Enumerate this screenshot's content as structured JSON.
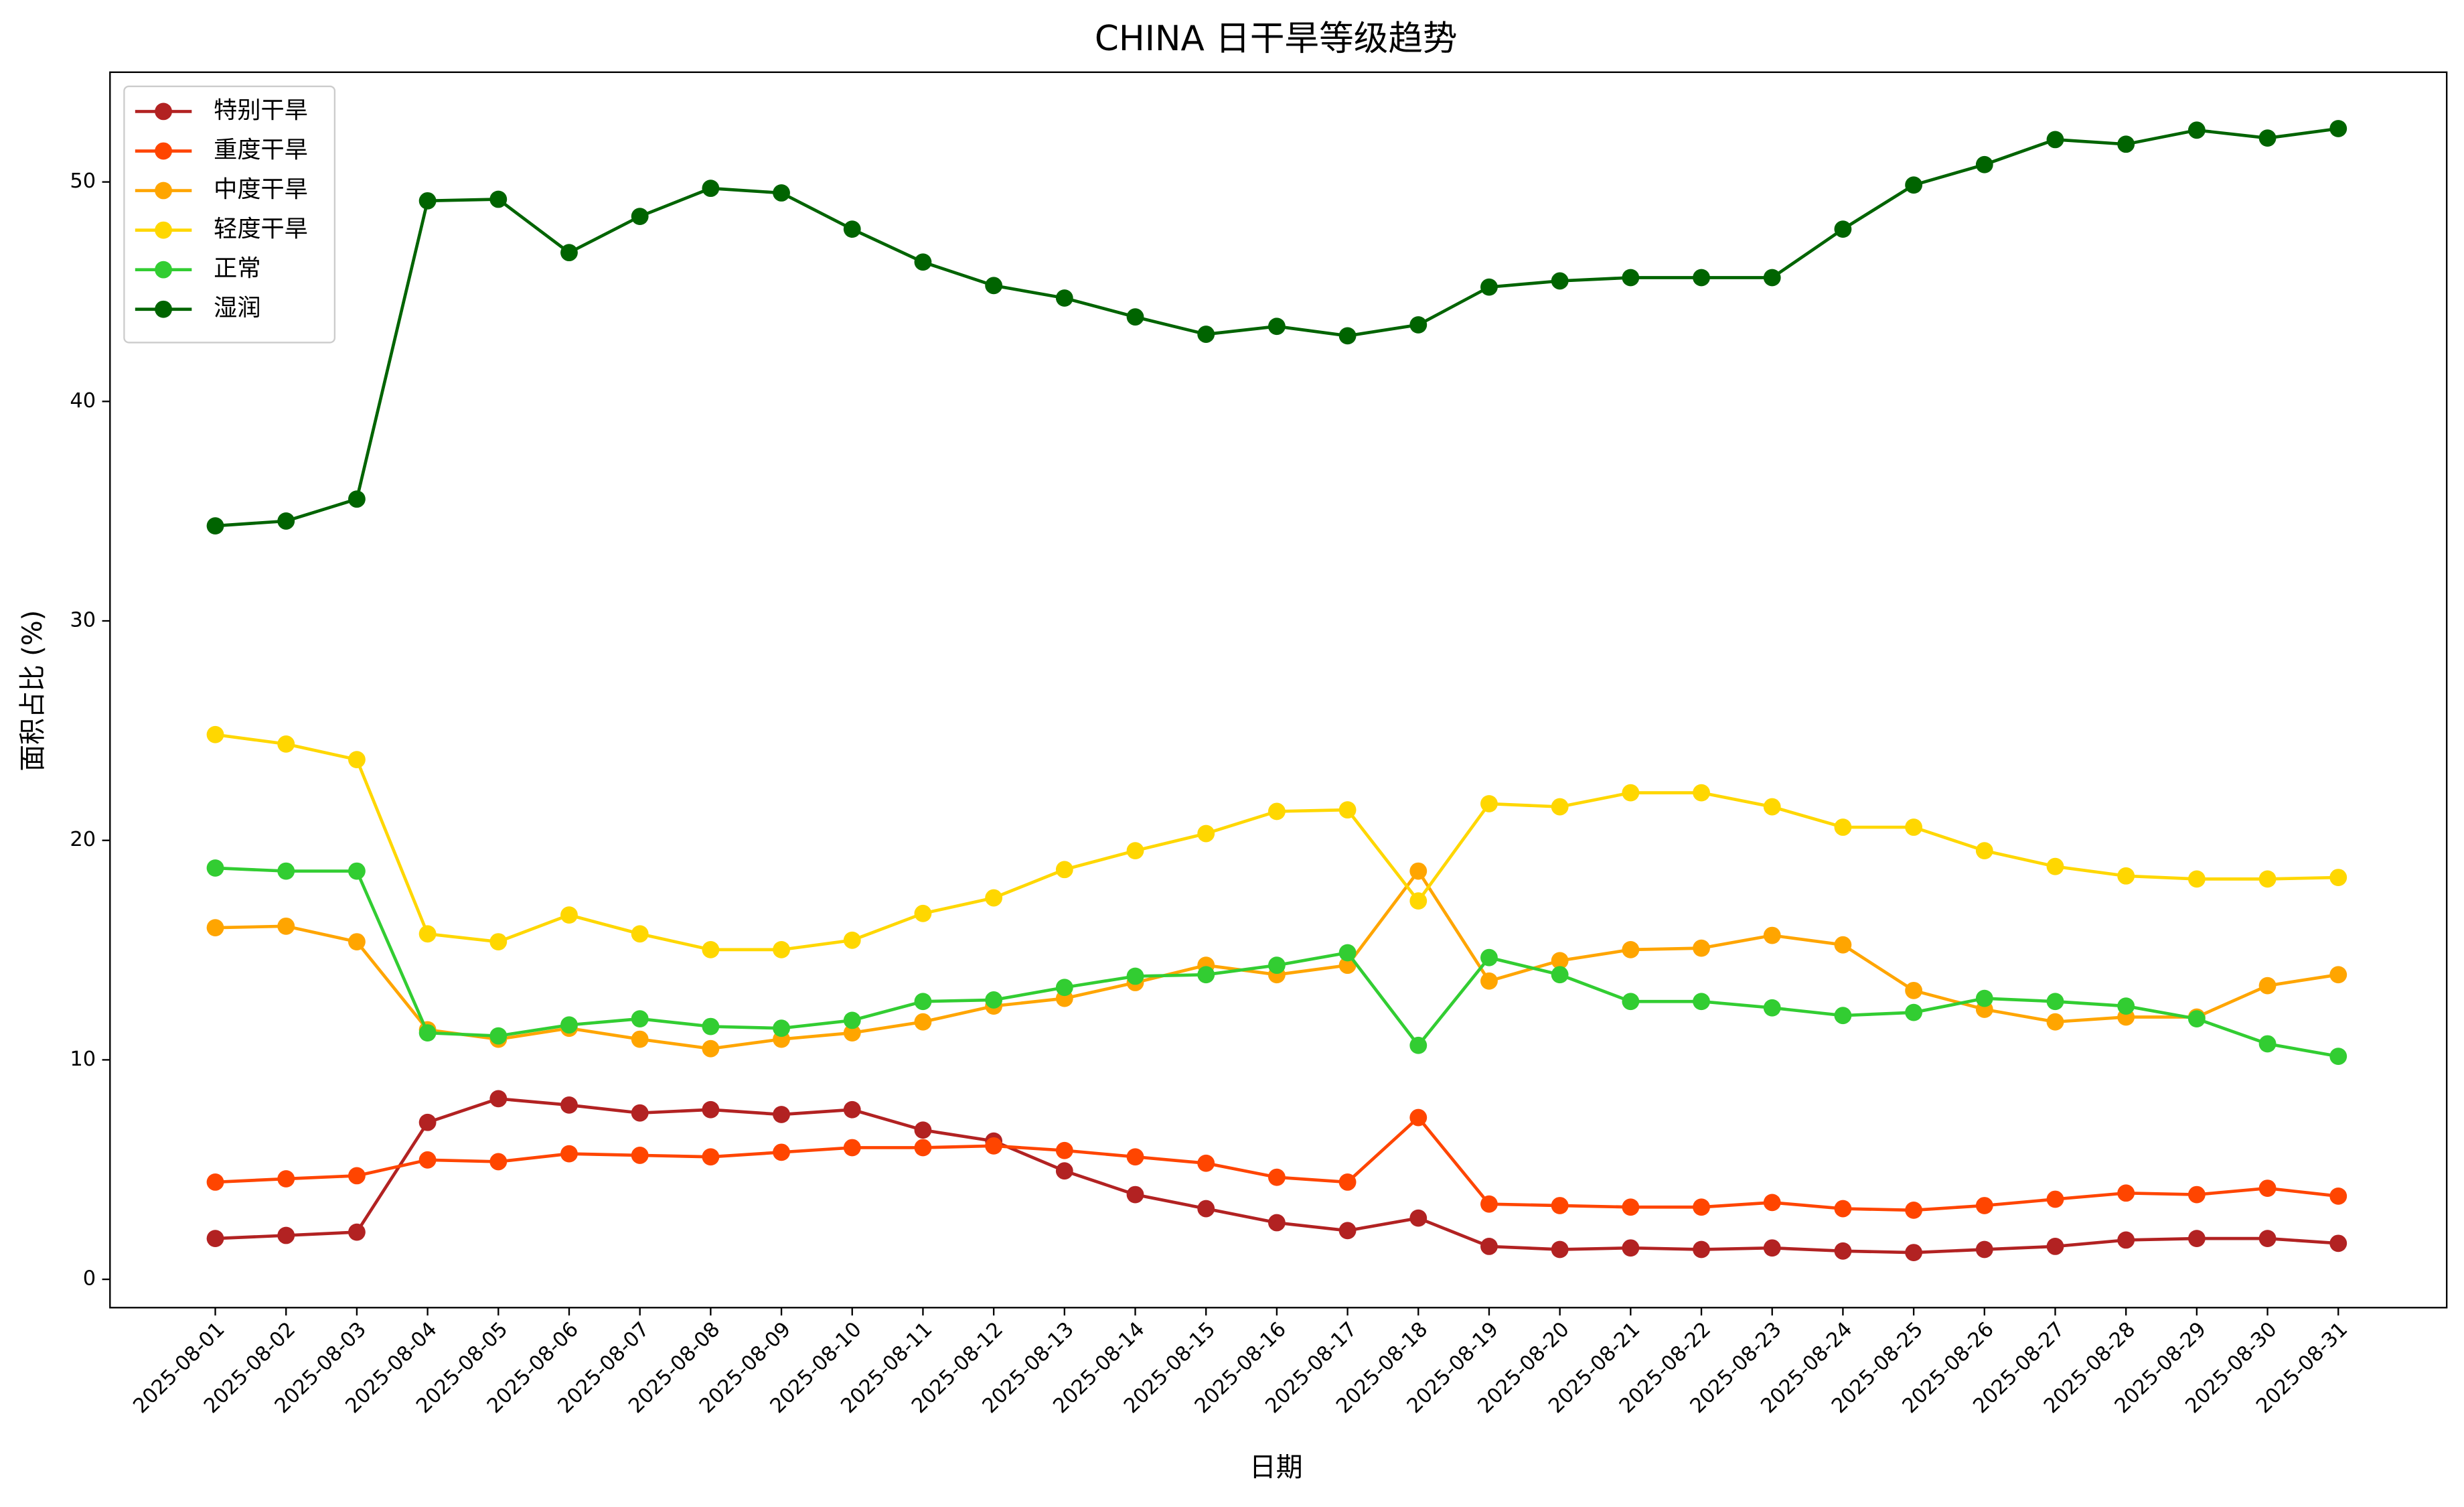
{
  "chart_data": {
    "type": "line",
    "title": "CHINA 日干旱等级趋势",
    "x_label": "日期",
    "y_label": "面积占比 (%)",
    "categories": [
      "2025-08-01",
      "2025-08-02",
      "2025-08-03",
      "2025-08-04",
      "2025-08-05",
      "2025-08-06",
      "2025-08-07",
      "2025-08-08",
      "2025-08-09",
      "2025-08-10",
      "2025-08-11",
      "2025-08-12",
      "2025-08-13",
      "2025-08-14",
      "2025-08-15",
      "2025-08-16",
      "2025-08-17",
      "2025-08-18",
      "2025-08-19",
      "2025-08-20",
      "2025-08-21",
      "2025-08-22",
      "2025-08-23",
      "2025-08-24",
      "2025-08-25",
      "2025-08-26",
      "2025-08-27",
      "2025-08-28",
      "2025-08-29",
      "2025-08-30",
      "2025-08-31"
    ],
    "series": [
      {
        "name": "特别干旱",
        "color": "#b22222",
        "values": [
          1.86,
          2.0,
          2.15,
          7.15,
          8.23,
          7.94,
          7.58,
          7.73,
          7.51,
          7.73,
          6.8,
          6.3,
          4.94,
          3.86,
          3.22,
          2.58,
          2.22,
          2.79,
          1.5,
          1.36,
          1.43,
          1.36,
          1.43,
          1.29,
          1.22,
          1.36,
          1.5,
          1.79,
          1.86,
          1.86,
          1.64
        ]
      },
      {
        "name": "重度干旱",
        "color": "#ff4500",
        "values": [
          4.43,
          4.58,
          4.72,
          5.44,
          5.36,
          5.72,
          5.65,
          5.58,
          5.79,
          6.0,
          6.0,
          6.08,
          5.87,
          5.58,
          5.29,
          4.65,
          4.43,
          7.37,
          3.43,
          3.36,
          3.29,
          3.29,
          3.5,
          3.22,
          3.15,
          3.36,
          3.65,
          3.93,
          3.86,
          4.15,
          3.79
        ]
      },
      {
        "name": "中度干旱",
        "color": "#ffa500",
        "values": [
          16.02,
          16.09,
          15.38,
          11.37,
          10.94,
          11.44,
          10.94,
          10.51,
          10.94,
          11.23,
          11.73,
          12.45,
          12.8,
          13.52,
          14.31,
          13.88,
          14.31,
          18.6,
          13.59,
          14.52,
          15.02,
          15.09,
          15.67,
          15.24,
          13.16,
          12.3,
          11.73,
          11.95,
          11.95,
          13.38,
          13.88
        ]
      },
      {
        "name": "轻度干旱",
        "color": "#ffd700",
        "values": [
          24.82,
          24.39,
          23.68,
          15.74,
          15.38,
          16.6,
          15.74,
          15.02,
          15.02,
          15.45,
          16.67,
          17.38,
          18.67,
          19.53,
          20.31,
          21.32,
          21.39,
          17.24,
          21.67,
          21.53,
          22.17,
          22.17,
          21.53,
          20.6,
          20.6,
          19.53,
          18.81,
          18.38,
          18.24,
          18.24,
          18.31
        ]
      },
      {
        "name": "正常",
        "color": "#32cd32",
        "values": [
          18.74,
          18.6,
          18.6,
          11.23,
          11.09,
          11.59,
          11.87,
          11.52,
          11.44,
          11.8,
          12.66,
          12.73,
          13.3,
          13.81,
          13.88,
          14.31,
          14.88,
          10.66,
          14.66,
          13.88,
          12.66,
          12.66,
          12.37,
          12.02,
          12.16,
          12.8,
          12.66,
          12.45,
          11.87,
          10.73,
          10.16
        ]
      },
      {
        "name": "湿润",
        "color": "#006400",
        "values": [
          34.33,
          34.55,
          35.55,
          49.14,
          49.21,
          46.78,
          48.43,
          49.71,
          49.5,
          47.85,
          46.35,
          45.28,
          44.71,
          43.85,
          43.06,
          43.42,
          42.99,
          43.49,
          45.21,
          45.49,
          45.64,
          45.64,
          45.64,
          47.85,
          49.86,
          50.79,
          51.93,
          51.72,
          52.36,
          52.0,
          52.43
        ]
      }
    ],
    "ylim": [
      -1.29,
      55.0
    ],
    "yticks": [
      0,
      10,
      20,
      30,
      40,
      50
    ],
    "grid": false,
    "legend": "upper-left"
  }
}
